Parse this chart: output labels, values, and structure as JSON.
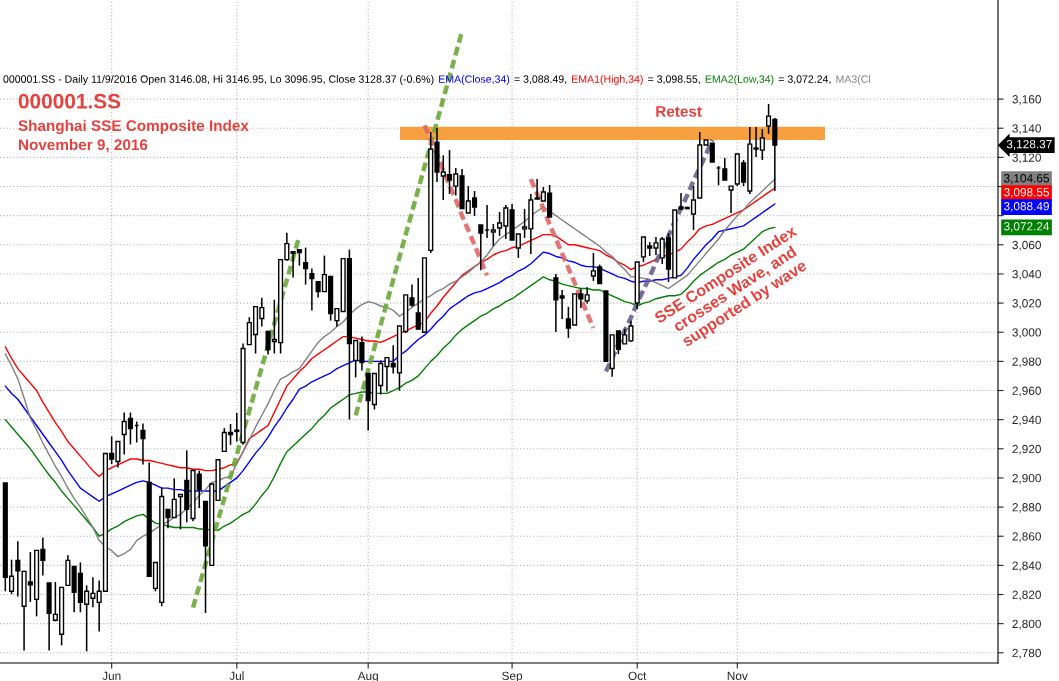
{
  "chart_data": {
    "type": "candlestick",
    "title": "000001.SS",
    "subtitle": "Shanghai SSE Composite Index",
    "annotations": [
      "000001.SS - Daily 11/9/2016 Open 3146.08, Hi 3146.95, Lo 3096.95, Close 3128.37 (-0.6%)",
      "November 9, 2016",
      "SSE Composite Index\ncrosses Wave, and\nsupported by wave",
      "3,128.37",
      "= 3,088.49,",
      "= 3,098.55,",
      "= 3,072.24,",
      "3,088.49",
      "3,098.55",
      "3,072.24",
      "3,104.65"
    ],
    "categories": [
      null,
      null,
      null,
      null,
      null,
      null,
      null,
      null,
      null,
      null,
      null,
      null,
      null,
      null,
      null,
      null,
      null,
      "Jun",
      null,
      null,
      null,
      null,
      null,
      null,
      null,
      null,
      null,
      null,
      null,
      null,
      null,
      null,
      null,
      null,
      null,
      null,
      null,
      "Jul",
      null,
      null,
      null,
      null,
      null,
      null,
      null,
      null,
      null,
      null,
      null,
      null,
      null,
      null,
      null,
      null,
      null,
      null,
      null,
      null,
      "Aug",
      null,
      null,
      null,
      null,
      null,
      null,
      null,
      null,
      null,
      null,
      null,
      null,
      null,
      null,
      null,
      null,
      null,
      null,
      null,
      null,
      null,
      null,
      "Sep",
      null,
      null,
      null,
      null,
      null,
      null,
      null,
      null,
      null,
      null,
      null,
      null,
      null,
      null,
      null,
      null,
      null,
      null,
      null,
      "Oct",
      null,
      null,
      null,
      null,
      null,
      null,
      null,
      null,
      null,
      null,
      null,
      null,
      null,
      null,
      null,
      "Nov",
      null,
      null,
      null,
      null,
      null,
      null
    ],
    "ohlc": [
      [
        2896.5,
        2896.5,
        2822.2,
        2831.8
      ],
      [
        2822.2,
        2843.9,
        2820.3,
        2832.5
      ],
      [
        2843.4,
        2856.5,
        2818.7,
        2836.3
      ],
      [
        2811.9,
        2836.3,
        2781.5,
        2835.9
      ],
      [
        2828.6,
        2849.1,
        2814.9,
        2826.7
      ],
      [
        2816.7,
        2850.3,
        2805.0,
        2850.3
      ],
      [
        2851.0,
        2859.2,
        2833.1,
        2843.4
      ],
      [
        2827.9,
        2827.9,
        2781.5,
        2807.1
      ],
      [
        2802.3,
        2828.6,
        2801.6,
        2806.4
      ],
      [
        2792.7,
        2824.9,
        2785.1,
        2824.9
      ],
      [
        2826.3,
        2846.9,
        2826.3,
        2843.4
      ],
      [
        2839.3,
        2839.3,
        2807.8,
        2821.5
      ],
      [
        2834.5,
        2842.0,
        2807.8,
        2814.6
      ],
      [
        2813.3,
        2826.3,
        2781.0,
        2822.2
      ],
      [
        2817.4,
        2831.8,
        2811.2,
        2820.8
      ],
      [
        2814.6,
        2829.7,
        2794.7,
        2822.2
      ],
      [
        2822.2,
        2916.8,
        2822.2,
        2916.8
      ],
      [
        2916.8,
        2928.5,
        2909.5,
        2912.9
      ],
      [
        2911.3,
        2925.0,
        2907.2,
        2925.0
      ],
      [
        2929.8,
        2944.9,
        2916.1,
        2938.7
      ],
      [
        2940.8,
        2944.9,
        2923.0,
        2933.9
      ],
      [
        2936.0,
        2938.7,
        2924.3,
        2936.0
      ],
      [
        2932.6,
        2937.4,
        2909.3,
        2927.1
      ],
      [
        2896.9,
        2910.6,
        2832.5,
        2832.5
      ],
      [
        2824.2,
        2842.0,
        2822.2,
        2842.0
      ],
      [
        2814.6,
        2893.5,
        2811.9,
        2887.3
      ],
      [
        2878.4,
        2878.4,
        2865.4,
        2872.9
      ],
      [
        2872.9,
        2899.7,
        2872.9,
        2885.3
      ],
      [
        2887.3,
        2888.7,
        2864.7,
        2888.7
      ],
      [
        2898.3,
        2918.9,
        2869.5,
        2878.4
      ],
      [
        2872.2,
        2905.1,
        2870.2,
        2905.1
      ],
      [
        2902.5,
        2905.0,
        2879.3,
        2892.0
      ],
      [
        2883.9,
        2883.9,
        2807.3,
        2853.5
      ],
      [
        2840.0,
        2895.8,
        2840.0,
        2895.8
      ],
      [
        2884.6,
        2912.5,
        2884.6,
        2912.5
      ],
      [
        2918.2,
        2934.2,
        2918.2,
        2931.2
      ],
      [
        2931.2,
        2937.0,
        2922.7,
        2929.8
      ],
      [
        2932.8,
        2944.5,
        2925.0,
        2931.9
      ],
      [
        2924.3,
        2992.2,
        2922.7,
        2988.8
      ],
      [
        2991.5,
        3010.3,
        2991.5,
        3006.6
      ],
      [
        2998.4,
        3017.6,
        2985.4,
        3017.6
      ],
      [
        3009.4,
        3023.7,
        3003.9,
        3016.9
      ],
      [
        3000.5,
        3001.1,
        2984.7,
        2988.1
      ],
      [
        2993.6,
        3022.3,
        2985.4,
        2995.0
      ],
      [
        2992.9,
        3049.8,
        2985.4,
        3049.8
      ],
      [
        3049.8,
        3068.3,
        3049.1,
        3060.8
      ],
      [
        3055.3,
        3055.3,
        3037.5,
        3054.2
      ],
      [
        3056.7,
        3056.7,
        3045.7,
        3054.6
      ],
      [
        3047.8,
        3058.1,
        3032.7,
        3043.7
      ],
      [
        3040.2,
        3043.7,
        3014.9,
        3036.8
      ],
      [
        3034.7,
        3034.7,
        3023.8,
        3027.9
      ],
      [
        3027.9,
        3052.6,
        3027.9,
        3039.5
      ],
      [
        3038.2,
        3038.2,
        3008.0,
        3012.8
      ],
      [
        3008.0,
        3016.2,
        3003.9,
        3016.2
      ],
      [
        3014.2,
        3050.5,
        3014.2,
        3050.5
      ],
      [
        3050.5,
        3056.7,
        2940.1,
        2992.2
      ],
      [
        2980.6,
        2994.3,
        2969.0,
        2994.3
      ],
      [
        2992.9,
        2997.0,
        2973.8,
        2979.2
      ],
      [
        2971.7,
        2971.7,
        2932.6,
        2953.1
      ],
      [
        2950.4,
        2971.7,
        2947.0,
        2971.7
      ],
      [
        2963.4,
        2980.6,
        2957.3,
        2978.5
      ],
      [
        2976.5,
        2982.6,
        2959.3,
        2982.6
      ],
      [
        2978.5,
        2991.1,
        2971.7,
        2976.2
      ],
      [
        2972.1,
        3004.3,
        2959.8,
        3004.3
      ],
      [
        3000.5,
        3025.6,
        2999.5,
        3025.6
      ],
      [
        3023.5,
        3032.7,
        3017.4,
        3018.7
      ],
      [
        3013.3,
        3037.3,
        3002.1,
        3002.1
      ],
      [
        3000.0,
        3051.0,
        2999.5,
        3051.0
      ],
      [
        3056.2,
        3137.4,
        3054.4,
        3125.7
      ],
      [
        3130.5,
        3140.1,
        3103.1,
        3110.0
      ],
      [
        3107.2,
        3121.4,
        3090.7,
        3110.0
      ],
      [
        3108.1,
        3125.0,
        3094.9,
        3104.5
      ],
      [
        3100.3,
        3112.7,
        3093.9,
        3108.6
      ],
      [
        3107.2,
        3112.0,
        3084.8,
        3084.8
      ],
      [
        3081.8,
        3100.3,
        3081.8,
        3090.1
      ],
      [
        3092.1,
        3096.9,
        3079.8,
        3085.9
      ],
      [
        3073.6,
        3073.6,
        3042.5,
        3068.1
      ],
      [
        3070.2,
        3087.3,
        3064.7,
        3070.2
      ],
      [
        3068.8,
        3074.3,
        3059.2,
        3070.2
      ],
      [
        3071.5,
        3082.5,
        3066.1,
        3075.0
      ],
      [
        3072.9,
        3087.3,
        3064.0,
        3085.3
      ],
      [
        3083.9,
        3088.0,
        3063.3,
        3063.3
      ],
      [
        3057.8,
        3067.4,
        3051.0,
        3067.4
      ],
      [
        3070.9,
        3084.6,
        3064.7,
        3072.2
      ],
      [
        3070.9,
        3094.9,
        3053.7,
        3090.7
      ],
      [
        3092.1,
        3105.1,
        3091.4,
        3091.4
      ],
      [
        3090.1,
        3099.7,
        3090.1,
        3096.2
      ],
      [
        3095.5,
        3101.0,
        3079.1,
        3079.1
      ],
      [
        3037.3,
        3040.0,
        3000.2,
        3022.2
      ],
      [
        3024.9,
        3029.0,
        3009.1,
        3023.5
      ],
      [
        3009.1,
        3017.4,
        2996.1,
        3002.9
      ],
      [
        3005.0,
        3026.3,
        3005.0,
        3026.3
      ],
      [
        3026.3,
        3029.9,
        3016.7,
        3022.9
      ],
      [
        3021.5,
        3030.9,
        3019.7,
        3025.6
      ],
      [
        3038.6,
        3054.4,
        3035.2,
        3042.1
      ],
      [
        3044.8,
        3046.4,
        3033.4,
        3033.4
      ],
      [
        3028.3,
        3028.3,
        2980.1,
        2980.1
      ],
      [
        2975.1,
        2998.2,
        2969.4,
        2998.2
      ],
      [
        3000.9,
        3000.9,
        2984.9,
        2988.3
      ],
      [
        2992.0,
        3002.3,
        2992.0,
        2998.2
      ],
      [
        2994.1,
        3007.8,
        2993.4,
        3004.3
      ],
      [
        3020.1,
        3048.2,
        3016.0,
        3048.2
      ],
      [
        3051.7,
        3065.4,
        3048.2,
        3065.4
      ],
      [
        3059.2,
        3061.9,
        3052.3,
        3057.8
      ],
      [
        3057.8,
        3065.4,
        3053.0,
        3061.3
      ],
      [
        3051.0,
        3065.4,
        3046.9,
        3064.0
      ],
      [
        3064.7,
        3068.1,
        3034.5,
        3043.4
      ],
      [
        3037.3,
        3083.9,
        3037.3,
        3083.9
      ],
      [
        3086.0,
        3095.5,
        3084.6,
        3084.6
      ],
      [
        3085.7,
        3085.7,
        3084.8,
        3084.8
      ],
      [
        3081.1,
        3100.3,
        3070.2,
        3090.7
      ],
      [
        3092.1,
        3137.4,
        3092.1,
        3128.5
      ],
      [
        3128.5,
        3131.9,
        3128.5,
        3131.9
      ],
      [
        3129.8,
        3129.8,
        3116.8,
        3116.8
      ],
      [
        3112.7,
        3114.1,
        3100.8,
        3112.7
      ],
      [
        3112.0,
        3119.5,
        3104.5,
        3104.5
      ],
      [
        3097.6,
        3100.3,
        3081.8,
        3100.3
      ],
      [
        3101.7,
        3122.3,
        3100.3,
        3122.3
      ],
      [
        3116.1,
        3118.2,
        3100.3,
        3103.1
      ],
      [
        3096.9,
        3140.8,
        3094.9,
        3129.1
      ],
      [
        3126.4,
        3140.8,
        3120.2,
        3125.7
      ],
      [
        3125.0,
        3139.4,
        3118.2,
        3133.3
      ],
      [
        3141.5,
        3156.6,
        3136.0,
        3148.3
      ],
      [
        3146.08,
        3146.95,
        3096.95,
        3128.37
      ]
    ],
    "series": [
      {
        "name": "EMA(Close,34)",
        "type": "line",
        "color": "#0000ff",
        "values": [
          2963,
          2958,
          2954,
          2948,
          2942,
          2936,
          2930,
          2924,
          2918,
          2912,
          2905,
          2899,
          2893,
          2890,
          2887,
          2884,
          2887,
          2889,
          2891,
          2893,
          2895,
          2897,
          2898,
          2897,
          2895,
          2893,
          2893,
          2892,
          2892,
          2891,
          2891,
          2891,
          2891,
          2891,
          2891,
          2894,
          2897,
          2900,
          2905,
          2911,
          2917,
          2922,
          2928,
          2935,
          2941,
          2948,
          2954,
          2961,
          2963,
          2966,
          2968,
          2970,
          2972,
          2975,
          2977,
          2979,
          2981,
          2980,
          2980,
          2980,
          2980,
          2980,
          2980,
          2984,
          2987,
          2991,
          2995,
          2998,
          3002,
          3007,
          3011,
          3016,
          3019,
          3022,
          3025,
          3027,
          3028,
          3030,
          3032,
          3034,
          3037,
          3039,
          3042,
          3044,
          3047,
          3051,
          3055,
          3054,
          3052,
          3051,
          3049,
          3048,
          3046,
          3045,
          3045,
          3044,
          3042,
          3040,
          3038,
          3037,
          3035,
          3034,
          3035,
          3035,
          3036,
          3036,
          3037,
          3038,
          3039,
          3044,
          3050,
          3055,
          3060,
          3064,
          3069,
          3070,
          3071,
          3072,
          3073,
          3076,
          3079,
          3082,
          3085,
          3088
        ]
      },
      {
        "name": "EMA1(High,34)",
        "type": "line",
        "color": "#ff0000",
        "values": [
          2990,
          2982,
          2975,
          2970,
          2965,
          2960,
          2952,
          2945,
          2938,
          2932,
          2925,
          2920,
          2915,
          2910,
          2905,
          2901,
          2905,
          2907,
          2909,
          2911,
          2913,
          2913,
          2912,
          2912,
          2911,
          2910,
          2909,
          2908,
          2907,
          2907,
          2906,
          2906,
          2905,
          2905,
          2906,
          2907,
          2909,
          2910,
          2918,
          2927,
          2930,
          2933,
          2936,
          2945,
          2954,
          2963,
          2968,
          2973,
          2977,
          2982,
          2985,
          2988,
          2991,
          2994,
          2997,
          2997,
          2996,
          2995,
          2994,
          2994,
          2993,
          2995,
          2997,
          2999,
          3001,
          3003,
          3005,
          3007,
          3013,
          3018,
          3024,
          3029,
          3034,
          3039,
          3042,
          3045,
          3048,
          3050,
          3053,
          3055,
          3056,
          3058,
          3059,
          3061,
          3063,
          3065,
          3067,
          3067,
          3066,
          3063,
          3060,
          3060,
          3059,
          3058,
          3057,
          3056,
          3053,
          3051,
          3048,
          3046,
          3043,
          3045,
          3046,
          3048,
          3050,
          3052,
          3053,
          3055,
          3057,
          3062,
          3066,
          3071,
          3073,
          3074,
          3076,
          3078,
          3080,
          3082,
          3084,
          3087,
          3090,
          3093,
          3096,
          3099
        ]
      },
      {
        "name": "EMA2(Low,34)",
        "type": "line",
        "color": "#008000",
        "values": [
          2940,
          2935,
          2930,
          2925,
          2920,
          2914,
          2908,
          2902,
          2897,
          2891,
          2886,
          2881,
          2876,
          2871,
          2866,
          2860,
          2862,
          2865,
          2867,
          2870,
          2872,
          2874,
          2875,
          2872,
          2869,
          2868,
          2867,
          2866,
          2866,
          2866,
          2866,
          2865,
          2865,
          2864,
          2864,
          2867,
          2869,
          2872,
          2875,
          2877,
          2882,
          2888,
          2893,
          2901,
          2910,
          2918,
          2922,
          2926,
          2930,
          2934,
          2939,
          2943,
          2948,
          2951,
          2954,
          2957,
          2958,
          2959,
          2959,
          2958,
          2958,
          2958,
          2960,
          2962,
          2965,
          2967,
          2970,
          2975,
          2980,
          2984,
          2989,
          2993,
          2998,
          3002,
          3005,
          3008,
          3011,
          3013,
          3016,
          3018,
          3021,
          3023,
          3026,
          3029,
          3032,
          3035,
          3038,
          3036,
          3035,
          3033,
          3032,
          3031,
          3030,
          3030,
          3029,
          3029,
          3027,
          3025,
          3023,
          3021,
          3020,
          3018,
          3020,
          3021,
          3023,
          3024,
          3025,
          3025,
          3026,
          3030,
          3035,
          3039,
          3042,
          3045,
          3048,
          3050,
          3053,
          3055,
          3057,
          3061,
          3065,
          3069,
          3071,
          3072
        ]
      },
      {
        "name": "MA3(Cl",
        "type": "line",
        "color": "#808080",
        "values": [
          2985,
          2977,
          2968,
          2955,
          2941,
          2933,
          2924,
          2916,
          2908,
          2901,
          2893,
          2886,
          2880,
          2873,
          2866,
          2857,
          2853,
          2850,
          2846,
          2848,
          2851,
          2857,
          2860,
          2862,
          2865,
          2868,
          2870,
          2873,
          2875,
          2879,
          2883,
          2888,
          2892,
          2897,
          2898,
          2900,
          2901,
          2910,
          2918,
          2926,
          2935,
          2943,
          2951,
          2960,
          2968,
          2970,
          2973,
          2975,
          2981,
          2987,
          2993,
          2997,
          3000,
          3004,
          3007,
          3012,
          3016,
          3019,
          3021,
          3020,
          3018,
          3017,
          3015,
          3011,
          3014,
          3017,
          3020,
          3023,
          3025,
          3028,
          3030,
          3033,
          3035,
          3038,
          3041,
          3045,
          3048,
          3053,
          3059,
          3064,
          3067,
          3070,
          3073,
          3076,
          3080,
          3083,
          3086,
          3083,
          3080,
          3077,
          3074,
          3071,
          3068,
          3065,
          3062,
          3059,
          3055,
          3052,
          3047,
          3043,
          3038,
          3038,
          3037,
          3036,
          3034,
          3032,
          3030,
          3033,
          3036,
          3039,
          3044,
          3049,
          3054,
          3059,
          3064,
          3070,
          3075,
          3080,
          3084,
          3089,
          3093,
          3097,
          3101,
          3105
        ]
      },
      {
        "type": "line",
        "line_style": "dashed",
        "color": "#6aa83a",
        "values": [
          null,
          null,
          null,
          null,
          null,
          null,
          null,
          null,
          null,
          null,
          null,
          null,
          null,
          null,
          null,
          null,
          null,
          null,
          null,
          null,
          null,
          null,
          null,
          null,
          null,
          null,
          null,
          null,
          null,
          null,
          2811,
          2826,
          2841,
          2856,
          2871,
          2886,
          2901,
          2916,
          2931,
          2946,
          2961,
          2976,
          2991,
          3006,
          3021,
          3036,
          3051,
          3066,
          null,
          null,
          null,
          null,
          null,
          null,
          null,
          null,
          null,
          null,
          null,
          null,
          null,
          null,
          null,
          null,
          null,
          null,
          null,
          null,
          null,
          null,
          null,
          null,
          null,
          null,
          null,
          null,
          null,
          null,
          null,
          null,
          null,
          null,
          null,
          null,
          null,
          null,
          null,
          null,
          null,
          null,
          null,
          null,
          null,
          null,
          null,
          null,
          null,
          null,
          null,
          null,
          null,
          null,
          null,
          null,
          null,
          null,
          null,
          null,
          null,
          null,
          null,
          null,
          null,
          null,
          null,
          null,
          null,
          null,
          null,
          null,
          null,
          null,
          null,
          null
        ]
      },
      {
        "type": "line",
        "line_style": "dashed",
        "color": "#6aa83a",
        "values": [
          null,
          null,
          null,
          null,
          null,
          null,
          null,
          null,
          null,
          null,
          null,
          null,
          null,
          null,
          null,
          null,
          null,
          null,
          null,
          null,
          null,
          null,
          null,
          null,
          null,
          null,
          null,
          null,
          null,
          null,
          null,
          null,
          null,
          null,
          null,
          null,
          null,
          null,
          null,
          null,
          null,
          null,
          null,
          null,
          null,
          null,
          null,
          null,
          null,
          null,
          null,
          null,
          null,
          null,
          null,
          null,
          2943,
          2958.5,
          2974,
          2989.5,
          3005,
          3020.5,
          3036,
          3051.5,
          3067,
          3082.5,
          3098,
          3113.5,
          3129,
          3144.5,
          3160,
          3175.5,
          3191,
          3206.5,
          null,
          null,
          null,
          null,
          null,
          null,
          null,
          null,
          null,
          null,
          null,
          null,
          null,
          null,
          null,
          null,
          null,
          null,
          null,
          null,
          null,
          null,
          null,
          null,
          null,
          null,
          null,
          null,
          null,
          null,
          null,
          null,
          null,
          null,
          null,
          null,
          null,
          null,
          null,
          null,
          null,
          null,
          null,
          null,
          null,
          null,
          null,
          null,
          null,
          null
        ]
      },
      {
        "type": "line",
        "line_style": "dashed",
        "color": "#e06666",
        "values": [
          null,
          null,
          null,
          null,
          null,
          null,
          null,
          null,
          null,
          null,
          null,
          null,
          null,
          null,
          null,
          null,
          null,
          null,
          null,
          null,
          null,
          null,
          null,
          null,
          null,
          null,
          null,
          null,
          null,
          null,
          null,
          null,
          null,
          null,
          null,
          null,
          null,
          null,
          null,
          null,
          null,
          null,
          null,
          null,
          null,
          null,
          null,
          null,
          null,
          null,
          null,
          null,
          null,
          null,
          null,
          null,
          null,
          null,
          null,
          null,
          null,
          null,
          null,
          null,
          null,
          null,
          null,
          3142,
          3132,
          3122,
          3111,
          3101,
          3091,
          3080,
          3070,
          3060,
          3049,
          3039,
          null,
          null,
          null,
          null,
          null,
          null,
          null,
          null,
          null,
          null,
          null,
          null,
          null,
          null,
          null,
          null,
          null,
          null,
          null,
          null,
          null,
          null,
          null,
          null,
          null,
          null,
          null,
          null,
          null,
          null,
          null,
          null,
          null,
          null,
          null,
          null,
          null,
          null,
          null,
          null,
          null,
          null,
          null,
          null,
          null,
          null
        ]
      },
      {
        "type": "line",
        "line_style": "dashed",
        "color": "#e06666",
        "values": [
          null,
          null,
          null,
          null,
          null,
          null,
          null,
          null,
          null,
          null,
          null,
          null,
          null,
          null,
          null,
          null,
          null,
          null,
          null,
          null,
          null,
          null,
          null,
          null,
          null,
          null,
          null,
          null,
          null,
          null,
          null,
          null,
          null,
          null,
          null,
          null,
          null,
          null,
          null,
          null,
          null,
          null,
          null,
          null,
          null,
          null,
          null,
          null,
          null,
          null,
          null,
          null,
          null,
          null,
          null,
          null,
          null,
          null,
          null,
          null,
          null,
          null,
          null,
          null,
          null,
          null,
          null,
          null,
          null,
          null,
          null,
          null,
          null,
          null,
          null,
          null,
          null,
          null,
          null,
          null,
          null,
          null,
          null,
          null,
          3105,
          3095,
          3085,
          3074,
          3064,
          3054,
          3044,
          3034,
          3023,
          3013,
          3003,
          null,
          null,
          null,
          null,
          null,
          null,
          null,
          null,
          null,
          null,
          null,
          null,
          null,
          null,
          null,
          null,
          null,
          null,
          null,
          null,
          null,
          null,
          null,
          null,
          null,
          null,
          null,
          null,
          null
        ]
      },
      {
        "type": "line",
        "line_style": "dashed",
        "color": "#6b5f8f",
        "values": [
          null,
          null,
          null,
          null,
          null,
          null,
          null,
          null,
          null,
          null,
          null,
          null,
          null,
          null,
          null,
          null,
          null,
          null,
          null,
          null,
          null,
          null,
          null,
          null,
          null,
          null,
          null,
          null,
          null,
          null,
          null,
          null,
          null,
          null,
          null,
          null,
          null,
          null,
          null,
          null,
          null,
          null,
          null,
          null,
          null,
          null,
          null,
          null,
          null,
          null,
          null,
          null,
          null,
          null,
          null,
          null,
          null,
          null,
          null,
          null,
          null,
          null,
          null,
          null,
          null,
          null,
          null,
          null,
          null,
          null,
          null,
          null,
          null,
          null,
          null,
          null,
          null,
          null,
          null,
          null,
          null,
          null,
          null,
          null,
          null,
          null,
          null,
          null,
          null,
          null,
          null,
          null,
          null,
          null,
          null,
          null,
          2973,
          2982,
          2992,
          3001,
          3010,
          3020,
          3029,
          3038,
          3048,
          3057,
          3066,
          3076,
          3085,
          3094,
          3104,
          3113,
          3122,
          3132,
          null,
          null,
          null,
          null,
          null,
          null,
          null,
          null,
          null,
          null
        ]
      }
    ],
    "bands": [
      {
        "axis": "y",
        "from": 3132,
        "to": 3141,
        "label": "Retest",
        "color": "#f7a040"
      }
    ],
    "ylim": [
      2773,
      3228
    ],
    "yticks": [
      {
        "value": 2780,
        "label": "2,780"
      },
      {
        "value": 2800,
        "label": "2,800"
      },
      {
        "value": 2820,
        "label": "2,820"
      },
      {
        "value": 2840,
        "label": "2,840"
      },
      {
        "value": 2860,
        "label": "2,860"
      },
      {
        "value": 2880,
        "label": "2,880"
      },
      {
        "value": 2900,
        "label": "2,900"
      },
      {
        "value": 2920,
        "label": "2,920"
      },
      {
        "value": 2940,
        "label": "2,940"
      },
      {
        "value": 2960,
        "label": "2,960"
      },
      {
        "value": 2980,
        "label": "2,980"
      },
      {
        "value": 3000,
        "label": "3,000"
      },
      {
        "value": 3020,
        "label": "3,020"
      },
      {
        "value": 3040,
        "label": "3,040"
      },
      {
        "value": 3060,
        "label": "3,060"
      },
      {
        "value": 3080,
        "label": null
      },
      {
        "value": 3100,
        "label": null
      },
      {
        "value": 3120,
        "label": "3,120"
      },
      {
        "value": 3140,
        "label": "3,140"
      },
      {
        "value": 3160,
        "label": "3,160"
      }
    ],
    "grid": true,
    "legend": "top"
  }
}
